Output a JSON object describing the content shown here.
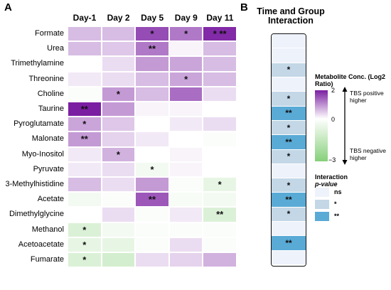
{
  "panels": {
    "a": "A",
    "b": "B"
  },
  "chart_data": {
    "type": "heatmap",
    "columns": [
      "Day-1",
      "Day 2",
      "Day 5",
      "Day 9",
      "Day 11"
    ],
    "rows": [
      "Formate",
      "Urea",
      "Trimethylamine",
      "Threonine",
      "Choline",
      "Taurine",
      "Pyroglutamate",
      "Malonate",
      "Myo-Inositol",
      "Pyruvate",
      "3-Methylhistidine",
      "Acetate",
      "Dimethylglycine",
      "Methanol",
      "Acetoacetate",
      "Fumarate"
    ],
    "values": [
      [
        0.6,
        0.6,
        1.6,
        1.2,
        1.9
      ],
      [
        0.6,
        0.5,
        1.2,
        0.1,
        0.6
      ],
      [
        0.0,
        0.3,
        0.9,
        0.8,
        0.6
      ],
      [
        0.2,
        0.3,
        0.6,
        0.8,
        0.6
      ],
      [
        -0.1,
        0.9,
        0.6,
        1.3,
        0.3
      ],
      [
        2.0,
        0.9,
        0.1,
        0.1,
        0.0
      ],
      [
        0.8,
        0.5,
        0.0,
        0.2,
        0.3
      ],
      [
        0.9,
        0.4,
        0.2,
        0.0,
        -0.1
      ],
      [
        0.2,
        0.7,
        0.0,
        0.1,
        0.0
      ],
      [
        0.2,
        0.3,
        -0.3,
        0.1,
        0.0
      ],
      [
        0.6,
        0.3,
        0.9,
        -0.1,
        -0.6
      ],
      [
        -0.3,
        -0.1,
        1.5,
        -0.2,
        -0.3
      ],
      [
        0.0,
        0.3,
        -0.1,
        0.2,
        -0.9
      ],
      [
        -0.9,
        -0.3,
        -0.1,
        -0.1,
        -0.1
      ],
      [
        -0.6,
        -0.6,
        -0.1,
        0.3,
        -0.1
      ],
      [
        -0.9,
        -1.1,
        0.3,
        0.4,
        0.7
      ]
    ],
    "stars": [
      [
        "",
        "",
        "*",
        "*",
        "* **"
      ],
      [
        "",
        "",
        "**",
        "",
        ""
      ],
      [
        "",
        "",
        "",
        "",
        ""
      ],
      [
        "",
        "",
        "",
        "*",
        ""
      ],
      [
        "",
        "*",
        "",
        "",
        ""
      ],
      [
        "**",
        "",
        "",
        "",
        ""
      ],
      [
        "*",
        "",
        "",
        "",
        ""
      ],
      [
        "**",
        "",
        "",
        "",
        ""
      ],
      [
        "",
        "*",
        "",
        "",
        ""
      ],
      [
        "",
        "",
        "*",
        "",
        ""
      ],
      [
        "",
        "",
        "",
        "",
        "*"
      ],
      [
        "",
        "",
        "**",
        "",
        ""
      ],
      [
        "",
        "",
        "",
        "",
        "**"
      ],
      [
        "*",
        "",
        "",
        "",
        ""
      ],
      [
        "*",
        "",
        "",
        "",
        ""
      ],
      [
        "*",
        "",
        "",
        "",
        ""
      ]
    ],
    "interaction": {
      "title": "Time and Group Interaction",
      "levels": [
        "ns",
        "ns",
        "*",
        "ns",
        "*",
        "**",
        "*",
        "**",
        "*",
        "ns",
        "*",
        "**",
        "*",
        "ns",
        "**",
        "ns"
      ],
      "stars": [
        "",
        "",
        "*",
        "",
        "*",
        "**",
        "*",
        "**",
        "*",
        "",
        "*",
        "**",
        "*",
        "",
        "**",
        ""
      ]
    },
    "colorscale": {
      "title": "Metabolite Conc. (Log2 Ratio)",
      "ticks": [
        "2",
        "0",
        "−3"
      ],
      "range": [
        -3,
        2
      ],
      "colors": {
        "low": "#86d07a",
        "mid": "#ffffff",
        "high": "#7b1fa2"
      },
      "positive_note": "TBS positive higher",
      "negative_note": "TBS negative higher"
    },
    "sig_legend": {
      "title": "Interaction",
      "subtitle": "p-value",
      "items": [
        {
          "label": "ns",
          "color": "#eef2fb"
        },
        {
          "label": "*",
          "color": "#c3d7e6"
        },
        {
          "label": "**",
          "color": "#5aaad6"
        }
      ]
    }
  }
}
